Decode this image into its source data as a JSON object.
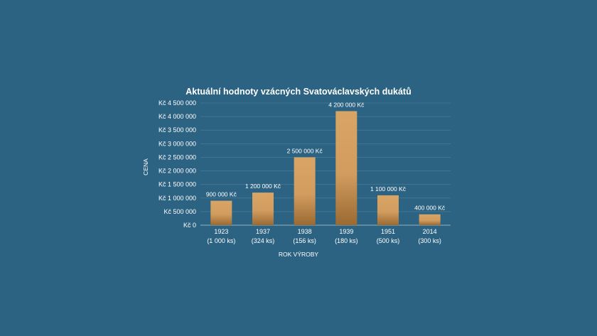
{
  "chart_data": {
    "type": "bar",
    "title": "Aktuální hodnoty vzácných Svatováclavských dukátů",
    "xlabel": "ROK VÝROBY",
    "ylabel": "CENA",
    "ylim": [
      0,
      4500000
    ],
    "grid": true,
    "y_ticks": [
      "Kč 0",
      "Kč 500 000",
      "Kč 1 000 000",
      "Kč 1 500 000",
      "Kč 2 000 000",
      "Kč 2 500 000",
      "Kč 3 000 000",
      "Kč 3 500 000",
      "Kč 4 000 000",
      "Kč 4 500 000"
    ],
    "y_tick_values": [
      0,
      500000,
      1000000,
      1500000,
      2000000,
      2500000,
      3000000,
      3500000,
      4000000,
      4500000
    ],
    "categories": [
      {
        "year": "1923",
        "count": "(1 000 ks)"
      },
      {
        "year": "1937",
        "count": "(324 ks)"
      },
      {
        "year": "1938",
        "count": "(156 ks)"
      },
      {
        "year": "1939",
        "count": "(180 ks)"
      },
      {
        "year": "1951",
        "count": "(500 ks)"
      },
      {
        "year": "2014",
        "count": "(300 ks)"
      }
    ],
    "values": [
      900000,
      1200000,
      2500000,
      4200000,
      1100000,
      400000
    ],
    "data_labels": [
      "900 000 Kč",
      "1 200 000 Kč",
      "2 500 000 Kč",
      "4 200 000 Kč",
      "1 100 000 Kč",
      "400 000 Kč"
    ],
    "colors": {
      "bar_top": "#d9a566",
      "bar_bottom": "#9a6a33",
      "grid": "#4f7f9a",
      "text": "#ffffff"
    }
  }
}
